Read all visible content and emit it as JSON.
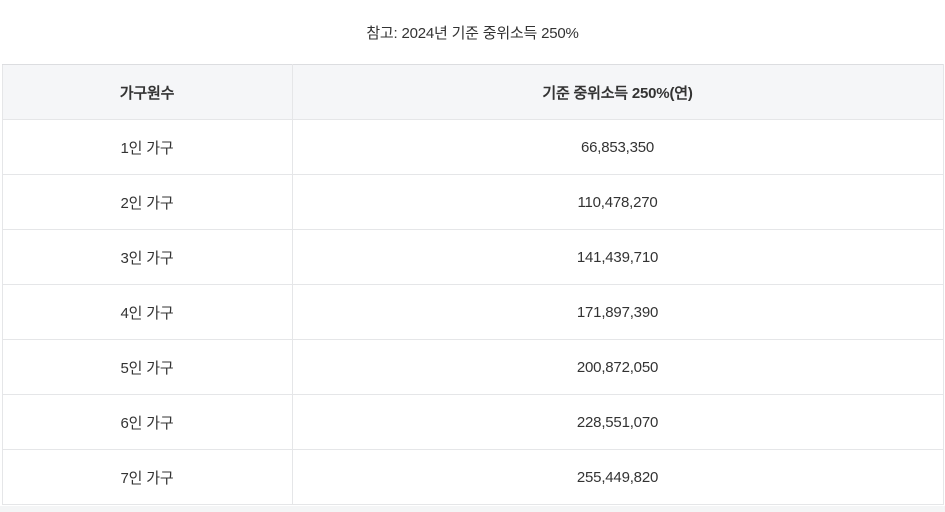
{
  "page": {
    "note": "참고: 2024년 기준 중위소득 250%"
  },
  "table": {
    "headers": [
      "가구원수",
      "기준 중위소득 250%(연)"
    ],
    "rows": [
      {
        "household": "1인 가구",
        "income": "66,853,350"
      },
      {
        "household": "2인 가구",
        "income": "110,478,270"
      },
      {
        "household": "3인 가구",
        "income": "141,439,710"
      },
      {
        "household": "4인 가구",
        "income": "171,897,390"
      },
      {
        "household": "5인 가구",
        "income": "200,872,050"
      },
      {
        "household": "6인 가구",
        "income": "228,551,070"
      },
      {
        "household": "7인 가구",
        "income": "255,449,820"
      }
    ]
  },
  "colors": {
    "header_bg": "#f5f6f8",
    "border": "#e5e6e8",
    "text": "#333333",
    "below_strip_bg": "#f4f5f6"
  },
  "chart_data": {
    "type": "table",
    "title": "참고: 2024년 기준 중위소득 250%",
    "columns": [
      "가구원수",
      "기준 중위소득 250%(연)"
    ],
    "rows": [
      [
        "1인 가구",
        66853350
      ],
      [
        "2인 가구",
        110478270
      ],
      [
        "3인 가구",
        141439710
      ],
      [
        "4인 가구",
        171897390
      ],
      [
        "5인 가구",
        200872050
      ],
      [
        "6인 가구",
        228551070
      ],
      [
        "7인 가구",
        255449820
      ]
    ]
  }
}
